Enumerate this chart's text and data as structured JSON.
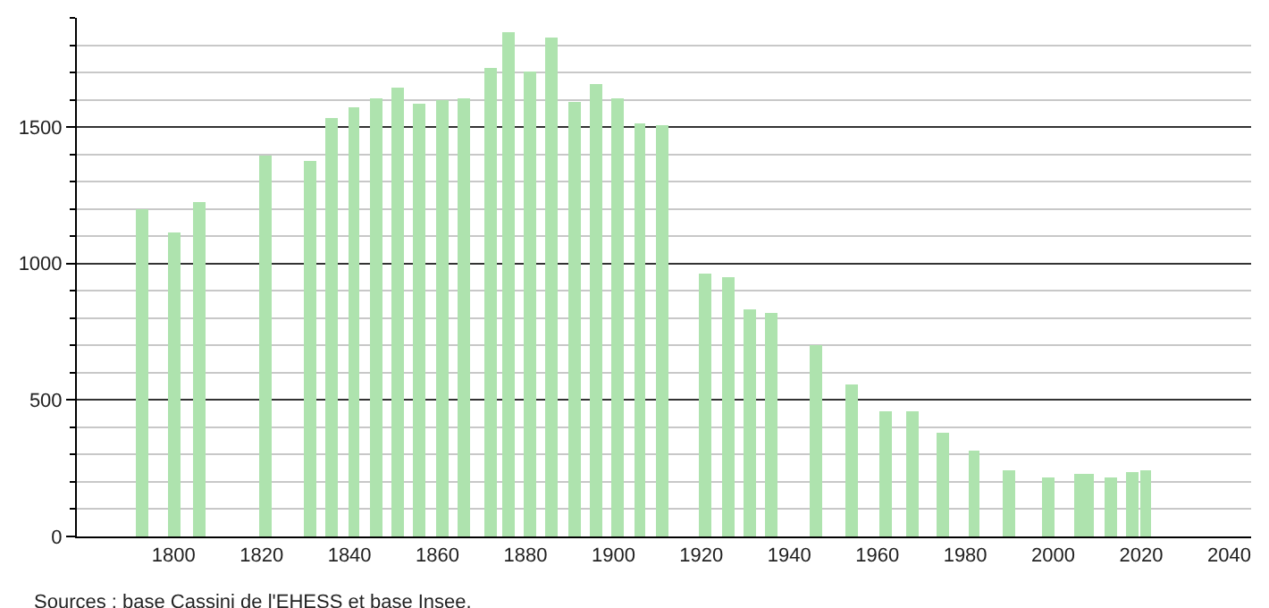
{
  "chart_data": {
    "type": "bar",
    "x": [
      1793,
      1800,
      1806,
      1821,
      1831,
      1836,
      1841,
      1846,
      1851,
      1856,
      1861,
      1866,
      1872,
      1876,
      1881,
      1886,
      1891,
      1896,
      1901,
      1906,
      1911,
      1921,
      1926,
      1931,
      1936,
      1946,
      1954,
      1962,
      1968,
      1975,
      1982,
      1990,
      1999,
      2006,
      2008,
      2013,
      2018,
      2021
    ],
    "values": [
      1197,
      1112,
      1224,
      1397,
      1375,
      1533,
      1572,
      1605,
      1645,
      1583,
      1601,
      1608,
      1715,
      1846,
      1702,
      1827,
      1590,
      1656,
      1608,
      1511,
      1507,
      960,
      952,
      829,
      820,
      702,
      559,
      461,
      461,
      380,
      314,
      245,
      215,
      230,
      230,
      217,
      239,
      243
    ],
    "color": "#aee3ae",
    "xlim": [
      1778,
      2045
    ],
    "xticks": [
      1800,
      1820,
      1840,
      1860,
      1880,
      1900,
      1920,
      1940,
      1960,
      1980,
      2000,
      2020,
      2040
    ],
    "ylim": [
      0,
      1900
    ],
    "yticks": [
      0,
      {
        "value": 100,
        "label": null
      },
      {
        "value": 200,
        "label": null
      },
      {
        "value": 300,
        "label": null
      },
      {
        "value": 400,
        "label": null
      },
      500,
      {
        "value": 600,
        "label": null
      },
      {
        "value": 700,
        "label": null
      },
      {
        "value": 800,
        "label": null
      },
      {
        "value": 900,
        "label": null
      },
      1000,
      {
        "value": 1100,
        "label": null
      },
      {
        "value": 1200,
        "label": null
      },
      {
        "value": 1300,
        "label": null
      },
      {
        "value": 1400,
        "label": null
      },
      1500,
      {
        "value": 1600,
        "label": null
      },
      {
        "value": 1700,
        "label": null
      },
      {
        "value": 1800,
        "label": null
      },
      {
        "value": 1900,
        "label": null
      }
    ],
    "grid": "y",
    "legend": false,
    "annotations": [
      "Sources : base Cassini de l'EHESS et base Insee."
    ]
  }
}
